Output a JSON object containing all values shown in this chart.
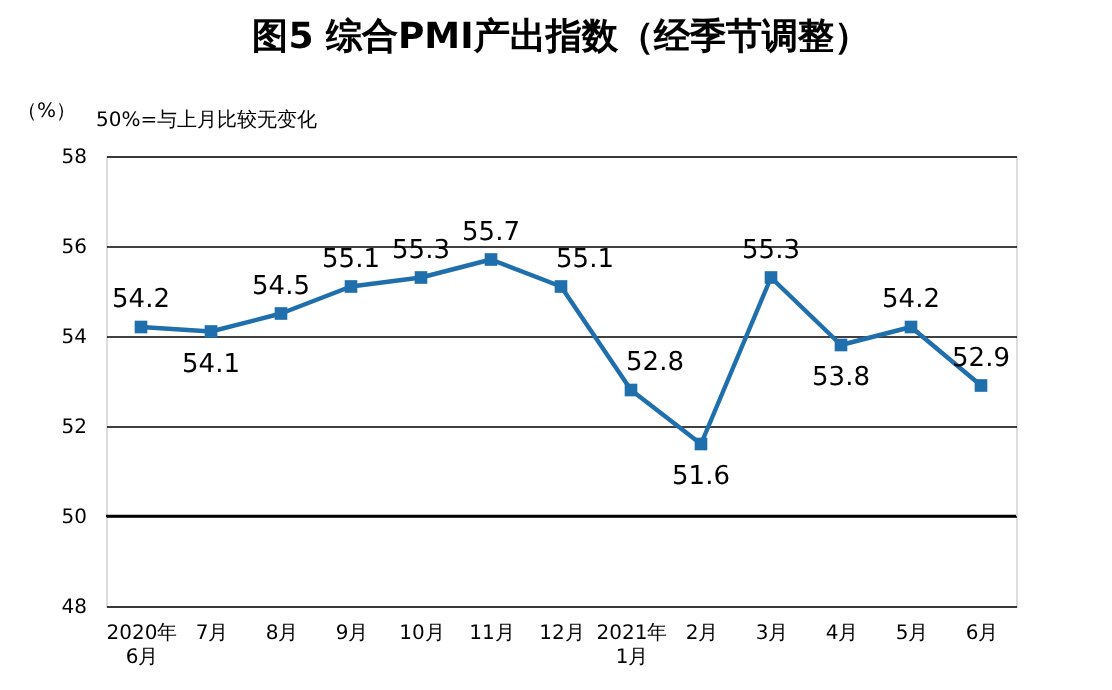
{
  "chart_data": {
    "type": "line",
    "title": "图5 综合PMI产出指数（经季节调整）",
    "ylabel": "（%）",
    "annotations": [
      "50%=与上月比较无变化"
    ],
    "categories": [
      "2020年\n6月",
      "7月",
      "8月",
      "9月",
      "10月",
      "11月",
      "12月",
      "2021年\n1月",
      "2月",
      "3月",
      "4月",
      "5月",
      "6月"
    ],
    "series": [
      {
        "color": "#1f6fad",
        "values": [
          54.2,
          54.1,
          54.5,
          55.1,
          55.3,
          55.7,
          55.1,
          52.8,
          51.6,
          55.3,
          53.8,
          54.2,
          52.9
        ]
      }
    ],
    "ylim": [
      48,
      58
    ],
    "yticks": [
      48,
      50,
      52,
      54,
      56,
      58
    ],
    "grid": "y",
    "marker": "square",
    "line_style": "solid",
    "data_labels": true,
    "ref_lines": [
      {
        "axis": "y",
        "value": 50,
        "color": "#000000"
      }
    ]
  }
}
